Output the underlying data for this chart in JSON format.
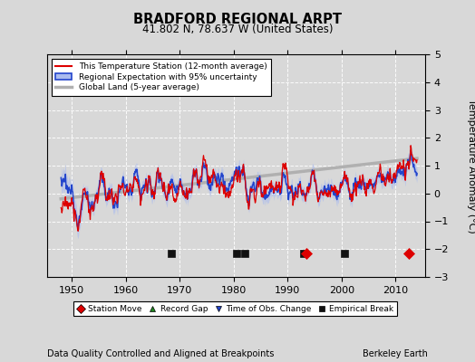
{
  "title": "BRADFORD REGIONAL ARPT",
  "subtitle": "41.802 N, 78.637 W (United States)",
  "ylabel": "Temperature Anomaly (°C)",
  "footer_left": "Data Quality Controlled and Aligned at Breakpoints",
  "footer_right": "Berkeley Earth",
  "xlim": [
    1945.5,
    2015.5
  ],
  "ylim": [
    -3.0,
    5.0
  ],
  "yticks": [
    -3,
    -2,
    -1,
    0,
    1,
    2,
    3,
    4,
    5
  ],
  "xticks": [
    1950,
    1960,
    1970,
    1980,
    1990,
    2000,
    2010
  ],
  "bg_color": "#d8d8d8",
  "plot_bg_color": "#d8d8d8",
  "station_color": "#dd0000",
  "regional_color": "#2244cc",
  "uncertainty_color": "#aabbee",
  "global_color": "#b0b0b0",
  "station_moves": [
    1993.5,
    2012.5
  ],
  "obs_changes": [],
  "empirical_breaks": [
    1968.5,
    1980.5,
    1982.0,
    1993.0,
    2000.5
  ],
  "legend_labels": [
    "This Temperature Station (12-month average)",
    "Regional Expectation with 95% uncertainty",
    "Global Land (5-year average)"
  ],
  "marker_legend": [
    {
      "label": "Station Move",
      "color": "#dd0000",
      "marker": "D"
    },
    {
      "label": "Record Gap",
      "color": "#228822",
      "marker": "^"
    },
    {
      "label": "Time of Obs. Change",
      "color": "#2244cc",
      "marker": "v"
    },
    {
      "label": "Empirical Break",
      "color": "#111111",
      "marker": "s"
    }
  ]
}
